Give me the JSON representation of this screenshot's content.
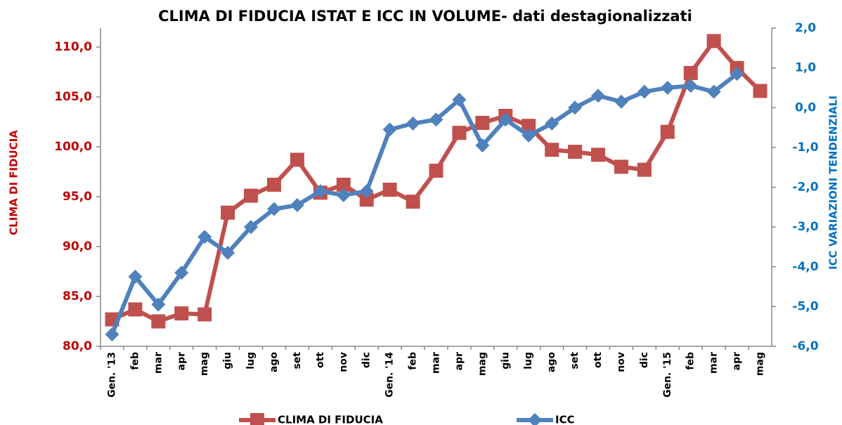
{
  "chart_data": {
    "type": "line",
    "title": "CLIMA DI FIDUCIA ISTAT E ICC IN VOLUME- dati destagionalizzati",
    "ylabel": "CLIMA DI FIDUCIA",
    "y2label": "ICC VARIAZIONI TENDENZIALI",
    "categories": [
      "Gen. '13",
      "feb",
      "mar",
      "apr",
      "mag",
      "giu",
      "lug",
      "ago",
      "set",
      "ott",
      "nov",
      "dic",
      "Gen. '14",
      "feb",
      "mar",
      "apr",
      "mag",
      "giu",
      "lug",
      "ago",
      "set",
      "ott",
      "nov",
      "dic",
      "Gen. '15",
      "feb",
      "mar",
      "apr",
      "mag"
    ],
    "series": [
      {
        "name": "CLIMA DI FIDUCIA",
        "color": "#c0504d",
        "marker": "square",
        "values": [
          82.7,
          83.7,
          82.5,
          83.3,
          83.2,
          93.4,
          95.1,
          96.2,
          98.7,
          95.4,
          96.2,
          94.7,
          95.7,
          94.5,
          97.6,
          101.4,
          102.4,
          103.1,
          102.1,
          99.7,
          99.5,
          99.2,
          98.0,
          97.7,
          101.5,
          107.4,
          110.6,
          107.9,
          105.6
        ]
      },
      {
        "name": "ICC",
        "color": "#4f81bd",
        "marker": "diamond",
        "axis": "y2",
        "values": [
          -5.7,
          -4.25,
          -4.95,
          -4.15,
          -3.25,
          -3.65,
          -3.0,
          -2.55,
          -2.45,
          -2.1,
          -2.2,
          -2.1,
          -0.55,
          -0.4,
          -0.3,
          0.2,
          -0.95,
          -0.3,
          -0.7,
          -0.4,
          0.0,
          0.3,
          0.15,
          0.4,
          0.5,
          0.55,
          0.4,
          0.85,
          null
        ]
      }
    ],
    "ylim": [
      80,
      111.9
    ],
    "yticks": [
      {
        "value": 80,
        "label": "80,0"
      },
      {
        "value": 85,
        "label": "85,0"
      },
      {
        "value": 90,
        "label": "90,0"
      },
      {
        "value": 95,
        "label": "95,0"
      },
      {
        "value": 100,
        "label": "100,0"
      },
      {
        "value": 105,
        "label": "105,0"
      },
      {
        "value": 110,
        "label": "110,0"
      }
    ],
    "y2lim": [
      -6,
      2
    ],
    "y2ticks": [
      {
        "value": -6,
        "label": "-6,0"
      },
      {
        "value": -5,
        "label": "-5,0"
      },
      {
        "value": -4,
        "label": "-4,0"
      },
      {
        "value": -3,
        "label": "-3,0"
      },
      {
        "value": -2,
        "label": "-2,0"
      },
      {
        "value": -1,
        "label": "-1,0"
      },
      {
        "value": 0,
        "label": "0,0"
      },
      {
        "value": 1,
        "label": "1,0"
      },
      {
        "value": 2,
        "label": "2,0"
      }
    ],
    "ylabel_color": "#c00000",
    "y2label_color": "#0070c0",
    "grid": false,
    "legend": "bottom"
  }
}
